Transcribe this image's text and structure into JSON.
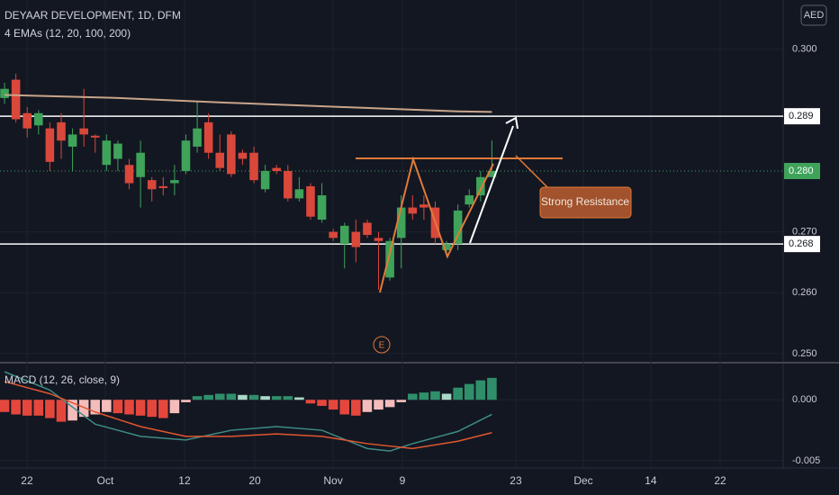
{
  "chart_data": {
    "type": "candlestick",
    "title": "DEYAAR DEVELOPMENT, 1D, DFM",
    "indicator_label": "4 EMAs (12, 20, 100, 200)",
    "currency": "AED",
    "earnings_marker": "E",
    "annotation": "Strong Resistance",
    "up_color": "#3fa35a",
    "down_color": "#d9483b",
    "open": [
      0.292,
      0.295,
      0.2895,
      0.2875,
      0.287,
      0.288,
      0.284,
      0.287,
      0.2858,
      0.281,
      0.282,
      0.281,
      0.279,
      0.2785,
      0.2775,
      0.278,
      0.28,
      0.284,
      0.288,
      0.283,
      0.286,
      0.283,
      0.283,
      0.277,
      0.2805,
      0.28,
      0.2755,
      0.2775,
      0.272,
      0.27,
      0.268,
      0.27,
      0.2715,
      0.269,
      0.2625,
      0.269,
      0.274,
      0.2745,
      0.274,
      0.267,
      0.268,
      0.2745,
      0.276,
      0.279
    ],
    "high": [
      0.2945,
      0.296,
      0.2905,
      0.29,
      0.288,
      0.2895,
      0.287,
      0.2935,
      0.286,
      0.286,
      0.285,
      0.282,
      0.285,
      0.279,
      0.279,
      0.281,
      0.286,
      0.2915,
      0.2895,
      0.286,
      0.2865,
      0.2835,
      0.284,
      0.281,
      0.281,
      0.281,
      0.279,
      0.278,
      0.278,
      0.2705,
      0.2715,
      0.272,
      0.272,
      0.27,
      0.269,
      0.276,
      0.276,
      0.276,
      0.275,
      0.2685,
      0.2745,
      0.277,
      0.28,
      0.285
    ],
    "low": [
      0.291,
      0.288,
      0.2855,
      0.286,
      0.28,
      0.282,
      0.28,
      0.284,
      0.283,
      0.28,
      0.28,
      0.277,
      0.274,
      0.275,
      0.276,
      0.276,
      0.2795,
      0.283,
      0.282,
      0.28,
      0.279,
      0.281,
      0.278,
      0.2765,
      0.2795,
      0.275,
      0.275,
      0.272,
      0.2715,
      0.2685,
      0.264,
      0.265,
      0.269,
      0.2605,
      0.262,
      0.264,
      0.272,
      0.272,
      0.268,
      0.266,
      0.267,
      0.274,
      0.275,
      0.279
    ],
    "close": [
      0.2935,
      0.2885,
      0.287,
      0.2895,
      0.2815,
      0.285,
      0.286,
      0.286,
      0.2855,
      0.285,
      0.2845,
      0.278,
      0.283,
      0.277,
      0.2772,
      0.2785,
      0.285,
      0.287,
      0.283,
      0.2805,
      0.2795,
      0.282,
      0.2785,
      0.28,
      0.28,
      0.2755,
      0.277,
      0.2725,
      0.276,
      0.269,
      0.271,
      0.2675,
      0.2695,
      0.2685,
      0.2685,
      0.274,
      0.273,
      0.274,
      0.269,
      0.268,
      0.2735,
      0.276,
      0.279,
      0.28
    ],
    "ema": {
      "color": "#c9a48a",
      "x": [
        0,
        10,
        20,
        30,
        40,
        43
      ],
      "values": [
        0.2925,
        0.292,
        0.2912,
        0.2905,
        0.2898,
        0.2897
      ]
    },
    "levels": [
      {
        "value": 0.289,
        "label": "0.289"
      },
      {
        "value": 0.268,
        "label": "0.268"
      }
    ],
    "last_price": {
      "value": 0.28,
      "label": "0.280"
    },
    "xlim": [
      -0.4,
      68.7
    ],
    "ylim": [
      0.2485,
      0.3081
    ],
    "yticks": [
      {
        "value": 0.3,
        "label": "0.300"
      },
      {
        "value": 0.27,
        "label": "0.270"
      },
      {
        "value": 0.26,
        "label": "0.260"
      },
      {
        "value": 0.25,
        "label": "0.250"
      }
    ],
    "xticks": [
      {
        "value": 1.98,
        "label": "22"
      },
      {
        "value": 8.89,
        "label": "Oct"
      },
      {
        "value": 15.88,
        "label": "12"
      },
      {
        "value": 22.08,
        "label": "20"
      },
      {
        "value": 28.99,
        "label": "Nov"
      },
      {
        "value": 35.1,
        "label": "9"
      },
      {
        "value": 45.11,
        "label": "23"
      },
      {
        "value": 51.07,
        "label": "Dec"
      },
      {
        "value": 57.02,
        "label": "14"
      },
      {
        "value": 63.14,
        "label": "22"
      }
    ],
    "macd": {
      "title": "MACD (12, 26, close, 9)",
      "ylim": [
        -0.0056,
        0.0029
      ],
      "yticks": [
        {
          "value": 0,
          "label": "0.000"
        },
        {
          "value": -0.005,
          "label": "-0.005"
        }
      ],
      "histogram": [
        -0.001,
        -0.0012,
        -0.0013,
        -0.0013,
        -0.0015,
        -0.0018,
        -0.0017,
        -0.0014,
        -0.0012,
        -0.001,
        -0.0011,
        -0.0012,
        -0.0013,
        -0.0014,
        -0.0015,
        -0.0011,
        -0.0002,
        0.0003,
        0.0004,
        0.0005,
        0.0005,
        0.0004,
        0.0004,
        0.0003,
        0.0003,
        0.0003,
        0.0002,
        -0.0003,
        -0.0005,
        -0.0008,
        -0.0012,
        -0.0013,
        -0.001,
        -0.0008,
        -0.0006,
        -0.0002,
        0.0005,
        0.0006,
        0.0007,
        0.0005,
        0.001,
        0.0013,
        0.0016,
        0.0018
      ],
      "lines": [
        {
          "color": "#3d8c86",
          "x": [
            0,
            4,
            8,
            12,
            16,
            20,
            24,
            28,
            32,
            34,
            36,
            40,
            43
          ],
          "values": [
            0.0023,
            0.0008,
            -0.002,
            -0.003,
            -0.0033,
            -0.0025,
            -0.0022,
            -0.0025,
            -0.004,
            -0.0042,
            -0.0036,
            -0.0026,
            -0.0012
          ]
        },
        {
          "color": "#e2562f",
          "x": [
            0,
            4,
            8,
            12,
            16,
            20,
            24,
            28,
            32,
            36,
            40,
            43
          ],
          "values": [
            0.0015,
            0.0005,
            -0.001,
            -0.0022,
            -0.003,
            -0.003,
            -0.0028,
            -0.003,
            -0.0036,
            -0.004,
            -0.0034,
            -0.0027
          ]
        }
      ]
    }
  }
}
